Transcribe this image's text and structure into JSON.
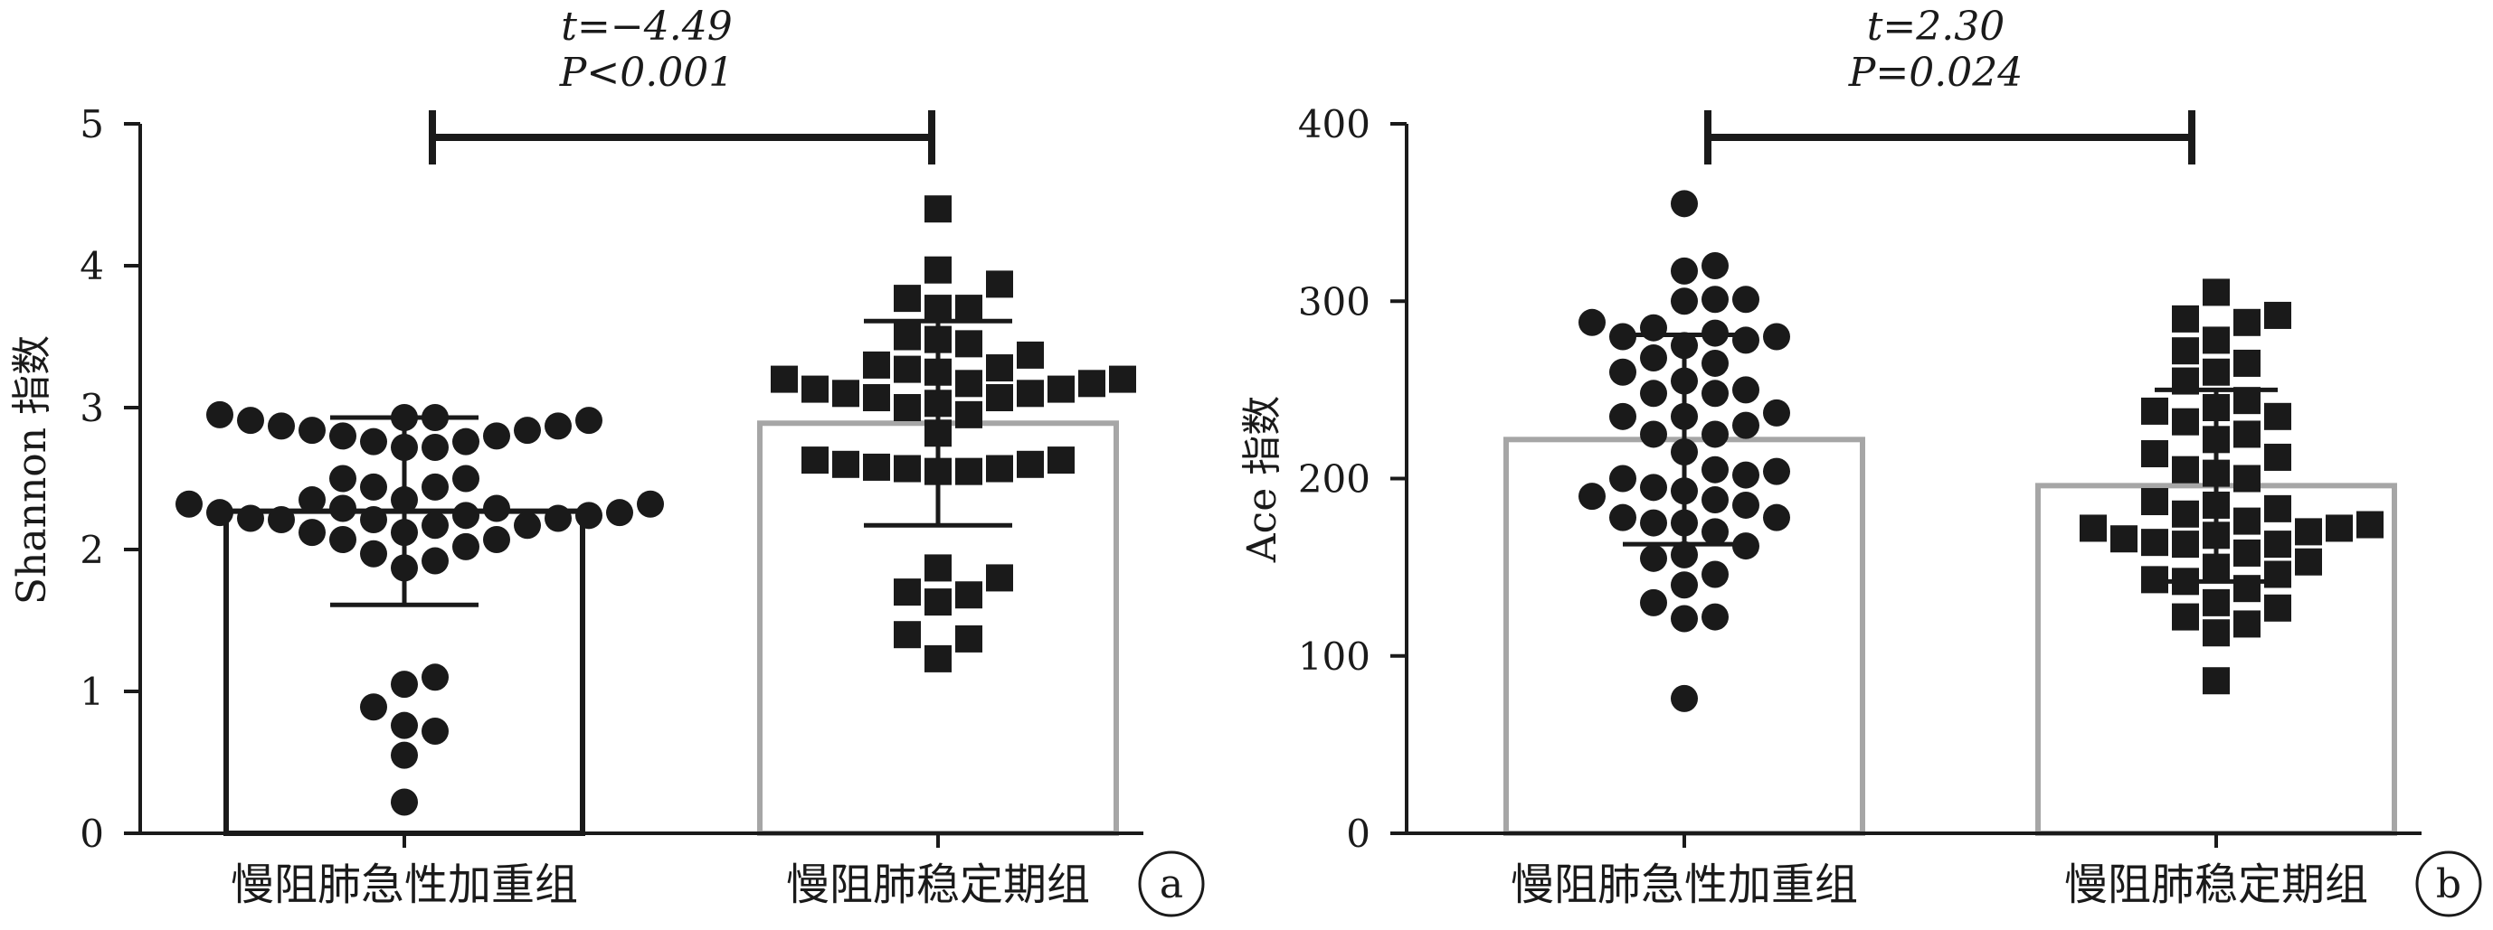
{
  "chart_data": [
    {
      "panel": "a",
      "type": "bar",
      "categories": [
        "慢阻肺急性加重组",
        "慢阻肺稳定期组"
      ],
      "ylabel": "Shannon 指数",
      "ylim": [
        0,
        5
      ],
      "yticks": [
        0,
        1,
        2,
        3,
        4,
        5
      ],
      "stat_t": "t=−4.49",
      "stat_p": "P<0.001",
      "bar_colors": [
        "#1a1a1a",
        "#a6a6a6"
      ],
      "series": [
        {
          "category": "慢阻肺急性加重组",
          "marker": "circle",
          "mean": 2.27,
          "error": [
            1.61,
            2.93
          ],
          "points": [
            0.22,
            0.55,
            0.72,
            0.76,
            0.89,
            1.05,
            1.1,
            1.87,
            1.92,
            1.97,
            2.02,
            2.07,
            2.07,
            2.12,
            2.12,
            2.17,
            2.17,
            2.21,
            2.21,
            2.22,
            2.22,
            2.24,
            2.24,
            2.26,
            2.26,
            2.29,
            2.29,
            2.32,
            2.32,
            2.35,
            2.35,
            2.44,
            2.44,
            2.5,
            2.5,
            2.72,
            2.72,
            2.76,
            2.76,
            2.8,
            2.8,
            2.84,
            2.84,
            2.87,
            2.87,
            2.91,
            2.91,
            2.93,
            2.93,
            2.95
          ]
        },
        {
          "category": "慢阻肺稳定期组",
          "marker": "square",
          "mean": 2.89,
          "error": [
            2.17,
            3.61
          ],
          "points": [
            1.23,
            1.37,
            1.4,
            1.63,
            1.68,
            1.7,
            1.8,
            1.87,
            2.55,
            2.55,
            2.57,
            2.57,
            2.58,
            2.6,
            2.6,
            2.63,
            2.63,
            2.82,
            2.95,
            3.0,
            3.03,
            3.07,
            3.07,
            3.1,
            3.1,
            3.13,
            3.13,
            3.17,
            3.17,
            3.2,
            3.2,
            3.25,
            3.27,
            3.28,
            3.3,
            3.37,
            3.45,
            3.48,
            3.5,
            3.7,
            3.7,
            3.77,
            3.87,
            3.97,
            4.4
          ]
        }
      ]
    },
    {
      "panel": "b",
      "type": "bar",
      "categories": [
        "慢阻肺急性加重组",
        "慢阻肺稳定期组"
      ],
      "ylabel": "Ace 指数",
      "ylim": [
        0,
        400
      ],
      "yticks": [
        0,
        100,
        200,
        300,
        400
      ],
      "stat_t": "t=2.30",
      "stat_p": "P=0.024",
      "bar_colors": [
        "#a6a6a6",
        "#a6a6a6"
      ],
      "series": [
        {
          "category": "慢阻肺急性加重组",
          "marker": "circle",
          "mean": 222,
          "error": [
            163,
            281
          ],
          "points": [
            76,
            121,
            122,
            130,
            140,
            146,
            155,
            157,
            162,
            170,
            175,
            175,
            178,
            178,
            185,
            188,
            190,
            193,
            195,
            200,
            202,
            204,
            205,
            215,
            225,
            225,
            230,
            235,
            235,
            237,
            248,
            248,
            250,
            255,
            260,
            265,
            268,
            275,
            278,
            280,
            280,
            282,
            285,
            288,
            300,
            301,
            301,
            317,
            320,
            355
          ]
        },
        {
          "category": "慢阻肺稳定期组",
          "marker": "square",
          "mean": 196,
          "error": [
            142,
            250
          ],
          "points": [
            86,
            113,
            118,
            122,
            127,
            130,
            138,
            142,
            143,
            146,
            150,
            153,
            158,
            163,
            163,
            164,
            166,
            168,
            170,
            172,
            172,
            174,
            176,
            180,
            183,
            185,
            187,
            200,
            203,
            205,
            212,
            214,
            222,
            225,
            232,
            235,
            238,
            240,
            244,
            255,
            260,
            265,
            272,
            278,
            288,
            290,
            292,
            305
          ]
        }
      ]
    }
  ]
}
